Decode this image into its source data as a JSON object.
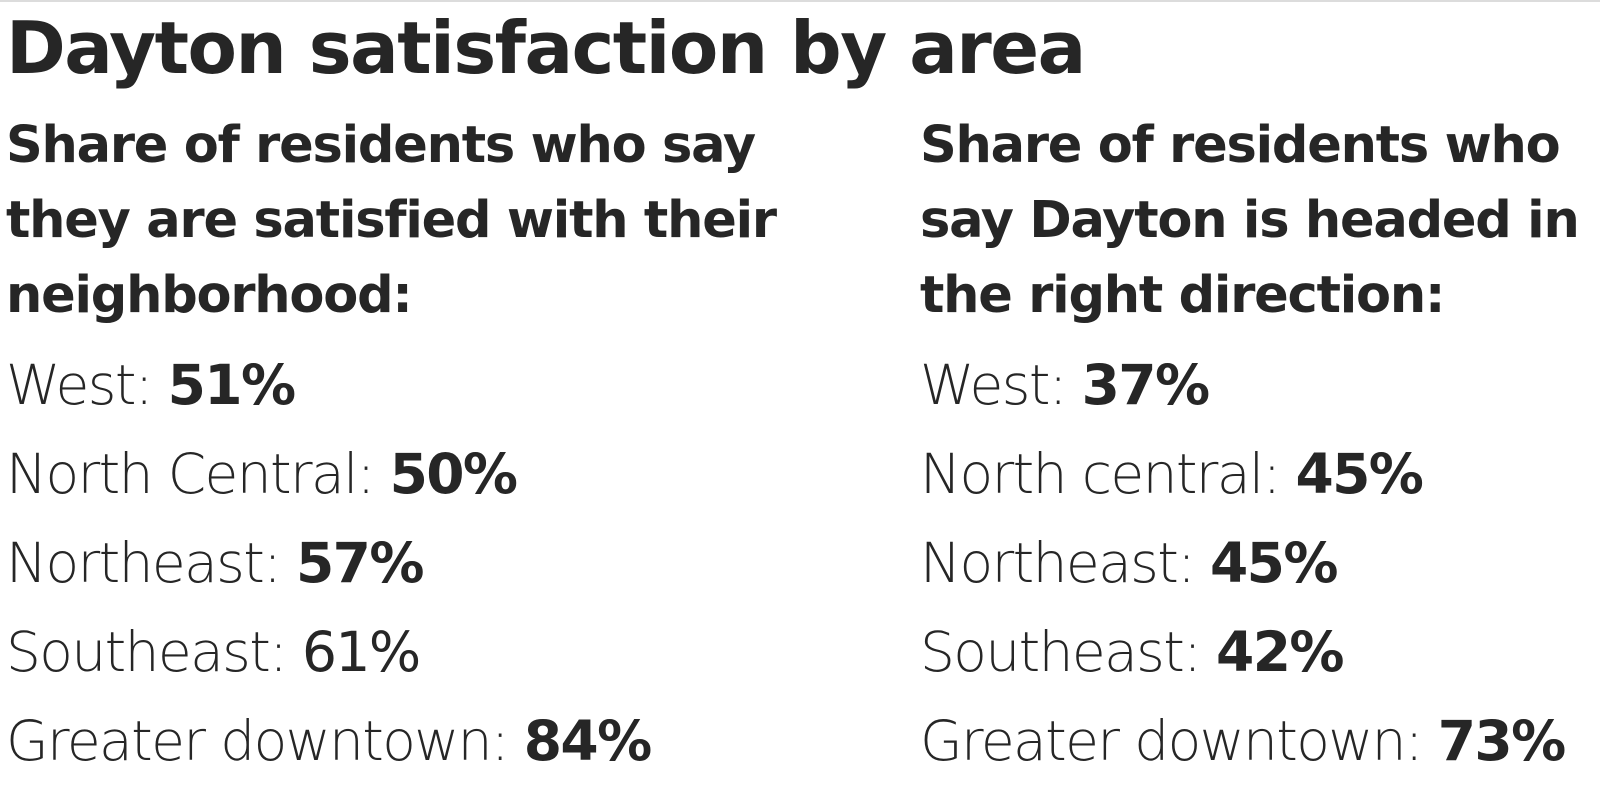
{
  "title": "Dayton satisfaction by area",
  "neighborhood_satisfaction": {
    "heading_lines": [
      "Share of residents who say",
      "they are satisfied with their",
      "neighborhood:"
    ],
    "rows": [
      {
        "area": "West:",
        "value": "51%"
      },
      {
        "area": "North Central:",
        "value": "50%"
      },
      {
        "area": "Northeast:",
        "value": "57%"
      },
      {
        "area": "Southeast:",
        "value": "61%"
      },
      {
        "area": "Greater downtown:",
        "value": "84%"
      }
    ]
  },
  "right_direction": {
    "heading_lines": [
      "Share of residents who",
      "say Dayton is headed in",
      "the right direction:"
    ],
    "rows": [
      {
        "area": "West:",
        "value": "37%"
      },
      {
        "area": "North central:",
        "value": "45%"
      },
      {
        "area": "Northeast:",
        "value": "45%"
      },
      {
        "area": "Southeast:",
        "value": "42%"
      },
      {
        "area": "Greater downtown:",
        "value": "73%"
      }
    ]
  }
}
